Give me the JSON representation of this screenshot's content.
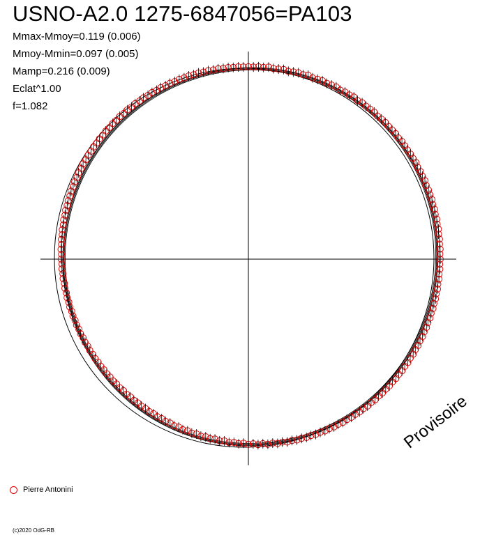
{
  "chart_data": {
    "type": "scatter",
    "title": "USNO-A2.0 1275-6847056=PA103",
    "stats": [
      "Mmax-Mmoy=0.119 (0.006)",
      "Mmoy-Mmin=0.097 (0.005)",
      "Mamp=0.216 (0.009)",
      "Eclat^1.00",
      "f=1.082"
    ],
    "series": [
      {
        "name": "Pierre Antonini",
        "marker_color": "#e00000"
      }
    ],
    "points": [
      [
        0,
        0.1
      ],
      [
        1.5,
        0.098
      ],
      [
        3,
        0.105
      ],
      [
        4.5,
        0.1
      ],
      [
        6,
        0.115
      ],
      [
        7.5,
        0.097
      ],
      [
        9,
        0.103
      ],
      [
        10.5,
        0.11
      ],
      [
        12,
        0.094
      ],
      [
        13.5,
        0.104
      ],
      [
        15,
        0.112
      ],
      [
        16.5,
        0.101
      ],
      [
        18,
        0.118
      ],
      [
        19.5,
        0.099
      ],
      [
        21,
        0.107
      ],
      [
        22.5,
        0.113
      ],
      [
        24,
        0.102
      ],
      [
        25.5,
        0.109
      ],
      [
        27,
        0.116
      ],
      [
        28.5,
        0.1
      ],
      [
        30,
        0.111
      ],
      [
        31.5,
        0.106
      ],
      [
        33,
        0.119
      ],
      [
        34.5,
        0.103
      ],
      [
        36,
        0.117
      ],
      [
        37.5,
        0.108
      ],
      [
        39,
        0.113
      ],
      [
        40.5,
        0.118
      ],
      [
        42,
        0.105
      ],
      [
        43.5,
        0.112
      ],
      [
        45,
        0.119
      ],
      [
        46.5,
        0.109
      ],
      [
        48,
        0.114
      ],
      [
        49.5,
        0.117
      ],
      [
        51,
        0.104
      ],
      [
        52.5,
        0.116
      ],
      [
        54,
        0.111
      ],
      [
        55.5,
        0.106
      ],
      [
        57,
        0.113
      ],
      [
        58.5,
        0.108
      ],
      [
        60,
        0.115
      ],
      [
        61.5,
        0.101
      ],
      [
        63,
        0.109
      ],
      [
        64.5,
        0.104
      ],
      [
        66,
        0.111
      ],
      [
        67.5,
        0.098
      ],
      [
        69,
        0.106
      ],
      [
        70.5,
        0.1
      ],
      [
        72,
        0.107
      ],
      [
        73.5,
        0.095
      ],
      [
        75,
        0.103
      ],
      [
        76.5,
        0.092
      ],
      [
        78,
        0.099
      ],
      [
        79.5,
        0.088
      ],
      [
        81,
        0.096
      ],
      [
        82.5,
        0.086
      ],
      [
        84,
        0.092
      ],
      [
        85.5,
        0.083
      ],
      [
        87,
        0.089
      ],
      [
        88.5,
        0.08
      ],
      [
        90,
        0.087
      ],
      [
        91.5,
        0.078
      ],
      [
        93,
        0.084
      ],
      [
        94.5,
        0.075
      ],
      [
        96,
        0.082
      ],
      [
        97.5,
        0.072
      ],
      [
        99,
        0.079
      ],
      [
        100.5,
        0.07
      ],
      [
        102,
        0.076
      ],
      [
        103.5,
        0.067
      ],
      [
        105,
        0.073
      ],
      [
        106.5,
        0.064
      ],
      [
        108,
        0.07
      ],
      [
        109.5,
        0.061
      ],
      [
        111,
        0.067
      ],
      [
        112.5,
        0.058
      ],
      [
        114,
        0.064
      ],
      [
        115.5,
        0.056
      ],
      [
        117,
        0.061
      ],
      [
        118.5,
        0.053
      ],
      [
        120,
        0.059
      ],
      [
        121.5,
        0.05
      ],
      [
        123,
        0.056
      ],
      [
        124.5,
        0.048
      ],
      [
        126,
        0.054
      ],
      [
        127.5,
        0.045
      ],
      [
        129,
        0.051
      ],
      [
        130.5,
        0.043
      ],
      [
        132,
        0.049
      ],
      [
        133.5,
        0.04
      ],
      [
        135,
        0.046
      ],
      [
        136.5,
        0.038
      ],
      [
        138,
        0.044
      ],
      [
        139.5,
        0.035
      ],
      [
        141,
        0.041
      ],
      [
        142.5,
        0.032
      ],
      [
        144,
        0.038
      ],
      [
        145.5,
        0.029
      ],
      [
        147,
        0.035
      ],
      [
        148.5,
        0.026
      ],
      [
        150,
        0.032
      ],
      [
        151.5,
        0.022
      ],
      [
        153,
        0.028
      ],
      [
        154.5,
        0.018
      ],
      [
        156,
        0.024
      ],
      [
        157.5,
        0.013
      ],
      [
        159,
        0.019
      ],
      [
        160.5,
        0.008
      ],
      [
        162,
        0.014
      ],
      [
        163.5,
        0.003
      ],
      [
        165,
        0.009
      ],
      [
        166.5,
        -0.004
      ],
      [
        168,
        0.004
      ],
      [
        169.5,
        -0.012
      ],
      [
        171,
        -0.002
      ],
      [
        172.5,
        -0.02
      ],
      [
        174,
        -0.01
      ],
      [
        175.5,
        -0.028
      ],
      [
        177,
        -0.018
      ],
      [
        178.5,
        -0.036
      ],
      [
        180,
        -0.026
      ],
      [
        181.5,
        -0.044
      ],
      [
        183,
        -0.034
      ],
      [
        184.5,
        -0.051
      ],
      [
        186,
        -0.041
      ],
      [
        187.5,
        -0.058
      ],
      [
        189,
        -0.048
      ],
      [
        190.5,
        -0.065
      ],
      [
        192,
        -0.055
      ],
      [
        193.5,
        -0.071
      ],
      [
        195,
        -0.061
      ],
      [
        196.5,
        -0.077
      ],
      [
        198,
        -0.067
      ],
      [
        199.5,
        -0.082
      ],
      [
        201,
        -0.072
      ],
      [
        202.5,
        -0.087
      ],
      [
        204,
        -0.077
      ],
      [
        205.5,
        -0.09
      ],
      [
        207,
        -0.082
      ],
      [
        208.5,
        -0.093
      ],
      [
        210,
        -0.085
      ],
      [
        211.5,
        -0.095
      ],
      [
        213,
        -0.087
      ],
      [
        214.5,
        -0.096
      ],
      [
        216,
        -0.088
      ],
      [
        217.5,
        -0.097
      ],
      [
        219,
        -0.089
      ],
      [
        220.5,
        -0.096
      ],
      [
        222,
        -0.088
      ],
      [
        223.5,
        -0.095
      ],
      [
        225,
        -0.087
      ],
      [
        226.5,
        -0.093
      ],
      [
        228,
        -0.085
      ],
      [
        229.5,
        -0.091
      ],
      [
        231,
        -0.082
      ],
      [
        232.5,
        -0.088
      ],
      [
        234,
        -0.079
      ],
      [
        235.5,
        -0.084
      ],
      [
        237,
        -0.075
      ],
      [
        238.5,
        -0.08
      ],
      [
        240,
        -0.07
      ],
      [
        241.5,
        -0.075
      ],
      [
        243,
        -0.065
      ],
      [
        244.5,
        -0.069
      ],
      [
        246,
        -0.059
      ],
      [
        247.5,
        -0.063
      ],
      [
        249,
        -0.052
      ],
      [
        250.5,
        -0.056
      ],
      [
        252,
        -0.045
      ],
      [
        253.5,
        -0.049
      ],
      [
        255,
        -0.037
      ],
      [
        256.5,
        -0.041
      ],
      [
        258,
        -0.029
      ],
      [
        259.5,
        -0.033
      ],
      [
        261,
        -0.021
      ],
      [
        262.5,
        -0.025
      ],
      [
        264,
        -0.013
      ],
      [
        265.5,
        -0.017
      ],
      [
        267,
        -0.005
      ],
      [
        268.5,
        -0.009
      ],
      [
        270,
        0.003
      ],
      [
        271.5,
        -0.001
      ],
      [
        273,
        0.011
      ],
      [
        274.5,
        0.007
      ],
      [
        276,
        0.018
      ],
      [
        277.5,
        0.014
      ],
      [
        279,
        0.025
      ],
      [
        280.5,
        0.021
      ],
      [
        282,
        0.032
      ],
      [
        283.5,
        0.028
      ],
      [
        285,
        0.039
      ],
      [
        286.5,
        0.035
      ],
      [
        288,
        0.045
      ],
      [
        289.5,
        0.041
      ],
      [
        291,
        0.051
      ],
      [
        292.5,
        0.047
      ],
      [
        294,
        0.057
      ],
      [
        295.5,
        0.053
      ],
      [
        297,
        0.063
      ],
      [
        298.5,
        0.058
      ],
      [
        300,
        0.068
      ],
      [
        301.5,
        0.063
      ],
      [
        303,
        0.073
      ],
      [
        304.5,
        0.068
      ],
      [
        306,
        0.078
      ],
      [
        307.5,
        0.073
      ],
      [
        309,
        0.082
      ],
      [
        310.5,
        0.077
      ],
      [
        312,
        0.086
      ],
      [
        313.5,
        0.08
      ],
      [
        315,
        0.089
      ],
      [
        316.5,
        0.084
      ],
      [
        318,
        0.093
      ],
      [
        319.5,
        0.087
      ],
      [
        321,
        0.095
      ],
      [
        322.5,
        0.09
      ],
      [
        324,
        0.098
      ],
      [
        325.5,
        0.092
      ],
      [
        327,
        0.1
      ],
      [
        328.5,
        0.094
      ],
      [
        330,
        0.102
      ],
      [
        331.5,
        0.096
      ],
      [
        333,
        0.103
      ],
      [
        334.5,
        0.097
      ],
      [
        336,
        0.104
      ],
      [
        337.5,
        0.098
      ],
      [
        339,
        0.105
      ],
      [
        340.5,
        0.099
      ],
      [
        342,
        0.106
      ],
      [
        343.5,
        0.1
      ],
      [
        345,
        0.106
      ],
      [
        346.5,
        0.1
      ],
      [
        348,
        0.107
      ],
      [
        349.5,
        0.101
      ],
      [
        351,
        0.106
      ],
      [
        352.5,
        0.1
      ],
      [
        354,
        0.105
      ],
      [
        355.5,
        0.099
      ],
      [
        357,
        0.104
      ],
      [
        358.5,
        0.099
      ]
    ],
    "fit_amplitudes": [
      [
        0.104,
        0.0
      ],
      [
        0.0,
        0.0
      ],
      [
        0.0,
        0.0
      ]
    ],
    "watermark": "Provisoire",
    "footer": "(c)2020 OdG-RB"
  }
}
